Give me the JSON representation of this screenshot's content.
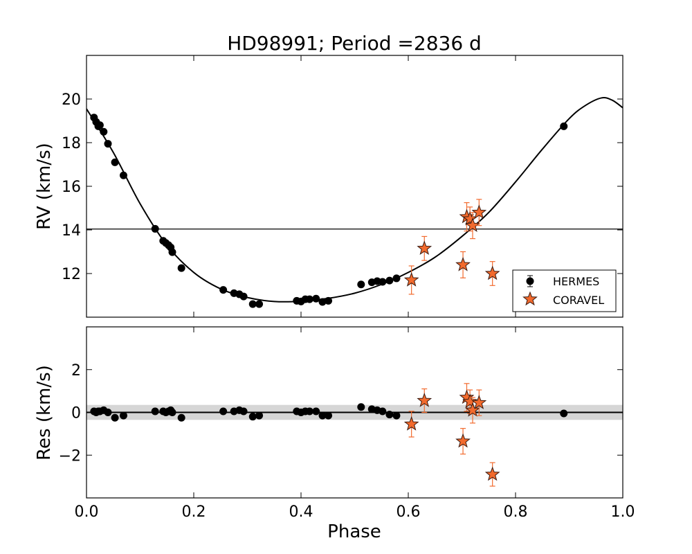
{
  "chart_data": {
    "type": "scatter",
    "title": "HD98991; Period =2836 d",
    "xlabel": "Phase",
    "xlim": [
      0.0,
      1.0
    ],
    "xticks": [
      "0.0",
      "0.2",
      "0.4",
      "0.6",
      "0.8",
      "1.0"
    ],
    "colors": {
      "hermes": "#000000",
      "coravel": "#f26a2d",
      "coravel_edge": "#3a1a10",
      "errorbar": "#f26a2d",
      "band": "#d6d6d6",
      "curve": "#000000"
    },
    "top_panel": {
      "ylabel": "RV (km/s)",
      "ylim": [
        10.0,
        22.0
      ],
      "yticks": [
        "12",
        "14",
        "16",
        "18",
        "20"
      ],
      "systemic_velocity": 14.04,
      "fit_curve": {
        "phase": [
          0.0,
          0.05,
          0.1,
          0.15,
          0.2,
          0.25,
          0.3,
          0.35,
          0.4,
          0.45,
          0.5,
          0.55,
          0.6,
          0.65,
          0.7,
          0.75,
          0.8,
          0.85,
          0.9,
          0.93,
          0.96,
          0.98,
          1.0
        ],
        "rv": [
          19.55,
          17.55,
          15.2,
          13.3,
          12.05,
          11.3,
          10.9,
          10.72,
          10.73,
          10.86,
          11.1,
          11.5,
          12.05,
          12.75,
          13.7,
          14.8,
          16.2,
          17.7,
          19.1,
          19.7,
          20.05,
          19.95,
          19.6
        ]
      },
      "legend": {
        "position": "lower-right",
        "entries": [
          {
            "name": "HERMES",
            "marker": "circle"
          },
          {
            "name": "CORAVEL",
            "marker": "star"
          }
        ]
      },
      "series": [
        {
          "name": "HERMES",
          "phase": [
            0.014,
            0.018,
            0.022,
            0.025,
            0.032,
            0.04,
            0.053,
            0.069,
            0.128,
            0.143,
            0.148,
            0.153,
            0.157,
            0.16,
            0.177,
            0.255,
            0.275,
            0.285,
            0.293,
            0.31,
            0.322,
            0.392,
            0.4,
            0.408,
            0.416,
            0.428,
            0.44,
            0.451,
            0.512,
            0.532,
            0.542,
            0.552,
            0.565,
            0.578,
            0.89
          ],
          "rv": [
            19.15,
            18.95,
            18.75,
            18.8,
            18.5,
            17.95,
            17.1,
            16.5,
            14.05,
            13.5,
            13.4,
            13.3,
            13.2,
            12.98,
            12.25,
            11.25,
            11.1,
            11.05,
            10.95,
            10.6,
            10.6,
            10.75,
            10.72,
            10.82,
            10.82,
            10.85,
            10.7,
            10.75,
            11.5,
            11.6,
            11.65,
            11.62,
            11.68,
            11.78,
            18.75
          ]
        },
        {
          "name": "CORAVEL",
          "phase": [
            0.606,
            0.63,
            0.702,
            0.709,
            0.715,
            0.72,
            0.732,
            0.757
          ],
          "rv": [
            11.7,
            13.15,
            12.4,
            14.6,
            14.5,
            14.2,
            14.8,
            12.0
          ],
          "rv_err": [
            0.65,
            0.55,
            0.6,
            0.65,
            0.55,
            0.6,
            0.6,
            0.55
          ]
        }
      ]
    },
    "bottom_panel": {
      "ylabel": "Res (km/s)",
      "ylim": [
        -4.0,
        4.0
      ],
      "yticks": [
        "2",
        "0",
        "−2"
      ],
      "rms_band": [
        -0.35,
        0.35
      ],
      "series": [
        {
          "name": "HERMES",
          "phase": [
            0.014,
            0.018,
            0.022,
            0.025,
            0.032,
            0.04,
            0.053,
            0.069,
            0.128,
            0.143,
            0.148,
            0.153,
            0.157,
            0.16,
            0.177,
            0.255,
            0.275,
            0.285,
            0.293,
            0.31,
            0.322,
            0.392,
            0.4,
            0.408,
            0.416,
            0.428,
            0.44,
            0.451,
            0.512,
            0.532,
            0.542,
            0.552,
            0.565,
            0.578,
            0.89
          ],
          "res": [
            0.05,
            0.0,
            0.05,
            0.05,
            0.1,
            0.0,
            -0.25,
            -0.15,
            0.05,
            0.05,
            0.0,
            0.05,
            0.1,
            0.0,
            -0.25,
            0.05,
            0.05,
            0.1,
            0.05,
            -0.2,
            -0.15,
            0.05,
            0.0,
            0.05,
            0.05,
            0.05,
            -0.15,
            -0.15,
            0.25,
            0.15,
            0.1,
            0.05,
            -0.1,
            -0.15,
            -0.05
          ]
        },
        {
          "name": "CORAVEL",
          "phase": [
            0.606,
            0.63,
            0.702,
            0.709,
            0.715,
            0.72,
            0.732,
            0.757
          ],
          "res": [
            -0.55,
            0.55,
            -1.35,
            0.7,
            0.5,
            0.1,
            0.45,
            -2.9
          ],
          "res_err": [
            0.6,
            0.55,
            0.6,
            0.65,
            0.55,
            0.6,
            0.6,
            0.55
          ]
        }
      ]
    }
  }
}
